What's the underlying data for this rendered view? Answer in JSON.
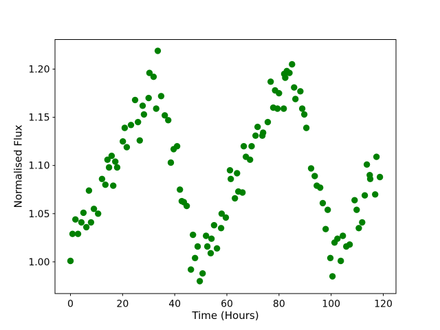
{
  "figure": {
    "background": "#ffffff",
    "frame_color": "#000000"
  },
  "chart_data": {
    "type": "scatter",
    "title": "",
    "xlabel": "Time (Hours)",
    "ylabel": "Normalised Flux",
    "grid": false,
    "legend": null,
    "xlim": [
      -5.93,
      124.88
    ],
    "ylim": [
      0.9671,
      1.2307
    ],
    "xticks": {
      "values": [
        0,
        20,
        40,
        60,
        80,
        100,
        120
      ],
      "labels": [
        "0",
        "20",
        "40",
        "60",
        "80",
        "100",
        "120"
      ]
    },
    "yticks": {
      "values": [
        1.0,
        1.05,
        1.1,
        1.15,
        1.2
      ],
      "labels": [
        "1.00",
        "1.05",
        "1.10",
        "1.15",
        "1.20"
      ]
    },
    "marker": {
      "shape": "circle",
      "color": "#008000",
      "radius_px": 4.7
    },
    "series": [
      {
        "name": "normalised-flux-light-curve",
        "points": [
          [
            0.0,
            1.001
          ],
          [
            0.8,
            1.029
          ],
          [
            1.9,
            1.044
          ],
          [
            2.9,
            1.029
          ],
          [
            4.2,
            1.041
          ],
          [
            5.0,
            1.051
          ],
          [
            6.1,
            1.036
          ],
          [
            7.1,
            1.074
          ],
          [
            7.9,
            1.041
          ],
          [
            9.0,
            1.055
          ],
          [
            10.6,
            1.05
          ],
          [
            12.1,
            1.086
          ],
          [
            13.4,
            1.08
          ],
          [
            14.2,
            1.106
          ],
          [
            14.8,
            1.098
          ],
          [
            15.8,
            1.11
          ],
          [
            16.4,
            1.079
          ],
          [
            17.2,
            1.104
          ],
          [
            17.9,
            1.098
          ],
          [
            20.1,
            1.125
          ],
          [
            20.8,
            1.139
          ],
          [
            21.6,
            1.119
          ],
          [
            23.2,
            1.142
          ],
          [
            24.8,
            1.168
          ],
          [
            25.9,
            1.145
          ],
          [
            26.6,
            1.126
          ],
          [
            27.7,
            1.162
          ],
          [
            28.2,
            1.153
          ],
          [
            30.0,
            1.17
          ],
          [
            30.3,
            1.196
          ],
          [
            31.9,
            1.192
          ],
          [
            32.9,
            1.159
          ],
          [
            33.5,
            1.219
          ],
          [
            34.8,
            1.172
          ],
          [
            36.2,
            1.152
          ],
          [
            37.5,
            1.147
          ],
          [
            38.5,
            1.103
          ],
          [
            39.6,
            1.117
          ],
          [
            40.9,
            1.12
          ],
          [
            42.0,
            1.075
          ],
          [
            42.7,
            1.063
          ],
          [
            43.5,
            1.062
          ],
          [
            44.6,
            1.058
          ],
          [
            46.2,
            0.992
          ],
          [
            47.0,
            1.028
          ],
          [
            47.8,
            1.004
          ],
          [
            48.8,
            1.016
          ],
          [
            49.6,
            0.98
          ],
          [
            50.7,
            0.988
          ],
          [
            52.0,
            1.027
          ],
          [
            52.5,
            1.016
          ],
          [
            53.8,
            1.009
          ],
          [
            54.1,
            1.024
          ],
          [
            55.1,
            1.038
          ],
          [
            56.2,
            1.014
          ],
          [
            57.8,
            1.035
          ],
          [
            58.0,
            1.05
          ],
          [
            59.6,
            1.046
          ],
          [
            61.2,
            1.095
          ],
          [
            61.5,
            1.086
          ],
          [
            63.1,
            1.066
          ],
          [
            63.9,
            1.092
          ],
          [
            64.4,
            1.073
          ],
          [
            66.0,
            1.072
          ],
          [
            66.5,
            1.12
          ],
          [
            67.3,
            1.109
          ],
          [
            68.9,
            1.106
          ],
          [
            69.5,
            1.12
          ],
          [
            71.0,
            1.131
          ],
          [
            71.8,
            1.14
          ],
          [
            73.6,
            1.131
          ],
          [
            73.9,
            1.134
          ],
          [
            75.7,
            1.145
          ],
          [
            76.8,
            1.187
          ],
          [
            77.8,
            1.16
          ],
          [
            78.5,
            1.178
          ],
          [
            79.4,
            1.159
          ],
          [
            80.0,
            1.175
          ],
          [
            81.8,
            1.159
          ],
          [
            82.0,
            1.195
          ],
          [
            82.4,
            1.191
          ],
          [
            83.0,
            1.198
          ],
          [
            84.0,
            1.196
          ],
          [
            85.0,
            1.205
          ],
          [
            85.8,
            1.181
          ],
          [
            86.3,
            1.169
          ],
          [
            88.2,
            1.177
          ],
          [
            88.9,
            1.159
          ],
          [
            89.7,
            1.153
          ],
          [
            90.5,
            1.139
          ],
          [
            92.3,
            1.097
          ],
          [
            93.7,
            1.089
          ],
          [
            94.5,
            1.079
          ],
          [
            95.8,
            1.077
          ],
          [
            96.8,
            1.061
          ],
          [
            97.9,
            1.034
          ],
          [
            98.7,
            1.054
          ],
          [
            99.7,
            1.004
          ],
          [
            100.5,
            0.985
          ],
          [
            101.3,
            1.02
          ],
          [
            102.4,
            1.024
          ],
          [
            103.7,
            1.001
          ],
          [
            104.5,
            1.027
          ],
          [
            105.8,
            1.016
          ],
          [
            107.1,
            1.018
          ],
          [
            109.0,
            1.064
          ],
          [
            109.8,
            1.054
          ],
          [
            110.6,
            1.035
          ],
          [
            111.9,
            1.041
          ],
          [
            112.9,
            1.069
          ],
          [
            113.7,
            1.101
          ],
          [
            114.8,
            1.09
          ],
          [
            115.0,
            1.086
          ],
          [
            116.9,
            1.07
          ],
          [
            117.4,
            1.109
          ],
          [
            118.7,
            1.088
          ]
        ]
      }
    ]
  }
}
